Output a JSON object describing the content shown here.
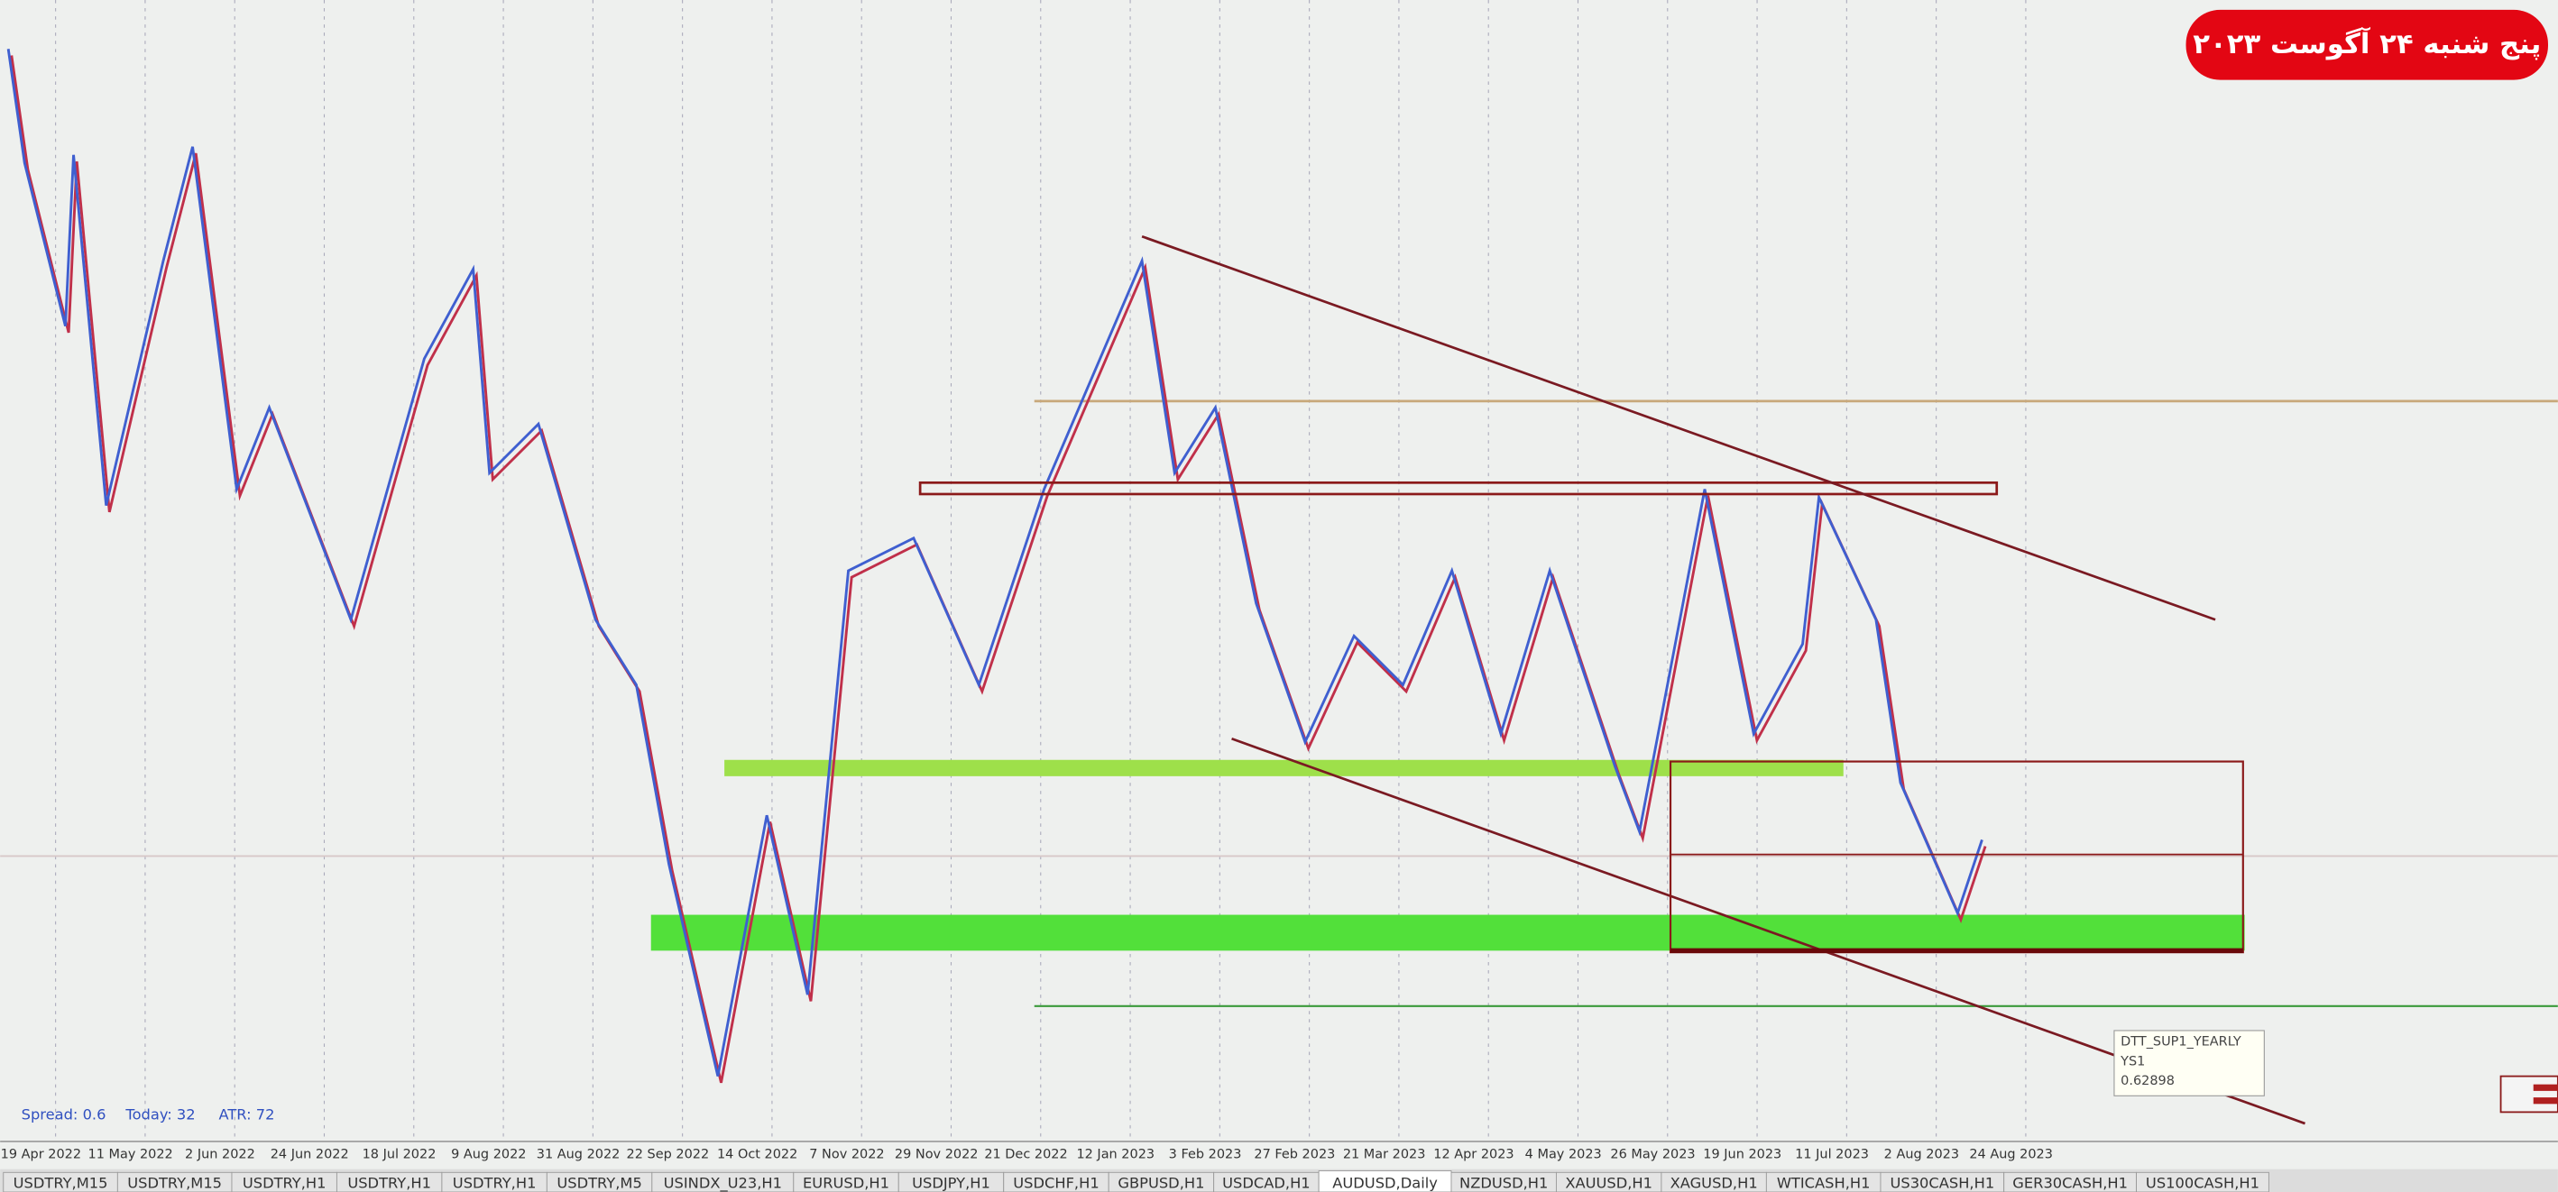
{
  "banner": {
    "text": "پنج شنبه ۲۴ آگوست ۲۰۲۳"
  },
  "status": {
    "spread": "Spread: 0.6",
    "today": "Today: 32",
    "atr": "ATR: 72"
  },
  "tooltip": {
    "name": "DTT_SUP1_YEARLY",
    "code": "YS1",
    "price": "0.62898"
  },
  "dates": [
    "19 Apr 2022",
    "11 May 2022",
    "2 Jun 2022",
    "24 Jun 2022",
    "18 Jul 2022",
    "9 Aug 2022",
    "31 Aug 2022",
    "22 Sep 2022",
    "14 Oct 2022",
    "7 Nov 2022",
    "29 Nov 2022",
    "21 Dec 2022",
    "12 Jan 2023",
    "3 Feb 2023",
    "27 Feb 2023",
    "21 Mar 2023",
    "12 Apr 2023",
    "4 May 2023",
    "26 May 2023",
    "19 Jun 2023",
    "11 Jul 2023",
    "2 Aug 2023",
    "24 Aug 2023"
  ],
  "tabs": [
    "USDTRY,M15",
    "USDTRY,M15",
    "USDTRY,H1",
    "USDTRY,H1",
    "USDTRY,H1",
    "USDTRY,M5",
    "USINDX_U23,H1",
    "EURUSD,H1",
    "USDJPY,H1",
    "USDCHF,H1",
    "GBPUSD,H1",
    "USDCAD,H1",
    "AUDUSD,Daily",
    "NZDUSD,H1",
    "XAUUSD,H1",
    "XAGUSD,H1",
    "WTICASH,H1",
    "US30CASH,H1",
    "GER30CASH,H1",
    "US100CASH,H1"
  ],
  "active_tab": 12
}
